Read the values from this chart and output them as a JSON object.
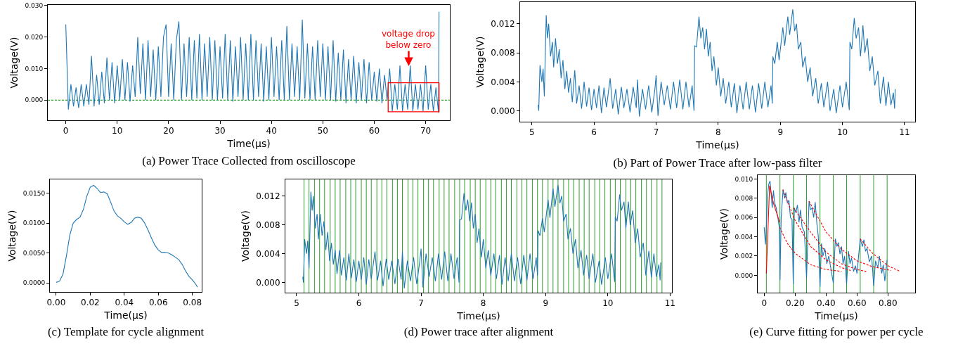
{
  "chart_data": [
    {
      "type": "line",
      "title": "(a) Power Trace Collected from oscilloscope",
      "xlabel": "Time(μs)",
      "ylabel": "Voltage(V)",
      "xlim": [
        -3.5,
        74.7
      ],
      "ylim": [
        -0.0064,
        0.0302
      ],
      "xticks": [
        0,
        10,
        20,
        30,
        40,
        50,
        60,
        70
      ],
      "yticks": [
        {
          "value": 0,
          "label": "0.000"
        },
        {
          "value": 0.01,
          "label": "0.010"
        },
        {
          "value": 0.02,
          "label": "0.020"
        },
        {
          "value": 0.03,
          "label": "0.030"
        }
      ],
      "series": [
        {
          "color": "#1f77b4",
          "x": [
            0,
            0.5,
            1,
            1.5,
            2,
            2.5,
            3,
            3.5,
            4,
            4.5,
            5,
            5.5,
            6,
            6.5,
            7,
            7.5,
            8,
            8.5,
            9,
            9.5,
            10,
            10.5,
            11,
            11.5,
            12,
            12.5,
            13,
            13.5,
            14,
            14.5,
            15,
            15.5,
            16,
            16.5,
            17,
            17.5,
            18,
            18.5,
            19,
            19.5,
            20,
            20.5,
            21,
            21.5,
            22,
            22.5,
            23,
            23.5,
            24,
            24.5,
            25,
            25.5,
            26,
            26.5,
            27,
            27.5,
            28,
            28.5,
            29,
            29.5,
            30,
            30.5,
            31,
            31.5,
            32,
            32.5,
            33,
            33.5,
            34,
            34.5,
            35,
            35.5,
            36,
            36.5,
            37,
            37.5,
            38,
            38.5,
            39,
            39.5,
            40,
            40.5,
            41,
            41.5,
            42,
            42.5,
            43,
            43.5,
            44,
            44.5,
            45,
            45.5,
            46,
            46.5,
            47,
            47.5,
            48,
            48.5,
            49,
            49.5,
            50,
            50.5,
            51,
            51.5,
            52,
            52.5,
            53,
            53.5,
            54,
            54.5,
            55,
            55.5,
            56,
            56.5,
            57,
            57.5,
            58,
            58.5,
            59,
            59.5,
            60,
            60.5,
            61,
            61.5,
            62,
            62.5,
            63,
            63.5,
            64,
            64.5,
            65,
            65.5,
            66,
            66.5,
            67,
            67.5,
            68,
            68.5,
            69,
            69.5,
            70,
            70.5,
            71,
            71.5,
            72,
            72.5,
            72.6
          ],
          "values": [
            0.024,
            -0.003,
            0.005,
            -0.002,
            0.004,
            -0.0025,
            0.005,
            -0.002,
            0.005,
            -0.0015,
            0.014,
            -0.002,
            0.008,
            -0.0015,
            0.009,
            -0.001,
            0.0135,
            0,
            0.012,
            -0.001,
            0.011,
            0,
            0.013,
            0,
            0.012,
            -0.0005,
            0.011,
            0.001,
            0.02,
            0.002,
            0.018,
            0,
            0.019,
            0.001,
            0.016,
            0,
            0.017,
            0.001,
            0.02,
            0.024,
            0.001,
            0.018,
            0,
            0.019,
            0.025,
            0,
            0.018,
            0.001,
            0.02,
            0,
            0.019,
            0.0005,
            0.021,
            0,
            0.018,
            0.001,
            0.02,
            0,
            0.019,
            0,
            0.017,
            0.0005,
            0.021,
            0,
            0.019,
            -0.0005,
            0.017,
            0.001,
            0.02,
            0,
            0.018,
            0,
            0.021,
            0,
            0.019,
            0.001,
            0.018,
            -0.0005,
            0.017,
            0,
            0.02,
            0.001,
            0.017,
            0,
            0.019,
            0,
            0.0235,
            0,
            0.018,
            0.001,
            0.017,
            0,
            0.0255,
            0.0005,
            0.018,
            0,
            0.017,
            0,
            0.019,
            0.001,
            0.018,
            0,
            0.017,
            0,
            0.019,
            -0.0005,
            0.015,
            0,
            0.016,
            -0.001,
            0.013,
            0,
            0.014,
            -0.001,
            0.012,
            0,
            0.013,
            -0.001,
            0.012,
            0,
            0.009,
            -0.0005,
            0.01,
            -0.001,
            0.008,
            0,
            0.01,
            -0.0035,
            0.005,
            -0.003,
            0.011,
            -0.0035,
            0.005,
            -0.003,
            0.011,
            -0.0035,
            0.005,
            -0.003,
            0.005,
            -0.0035,
            0.011,
            -0.003,
            0.005,
            -0.0035,
            0.004,
            -0.004,
            0.028
          ]
        }
      ],
      "ref_lines": [
        {
          "axis": "y",
          "value": 0,
          "color": "#2ca02c",
          "line_style": "dashed"
        }
      ],
      "annotations": [
        {
          "text": "voltage drop\nbelow zero",
          "x": 66.7,
          "y": 0.0108
        }
      ]
    },
    {
      "type": "line",
      "title": "(b) Part of Power Trace after low-pass filter",
      "xlabel": "Time(μs)",
      "ylabel": "Voltage(V)",
      "xlim": [
        4.81,
        11.17
      ],
      "ylim": [
        -0.0015,
        0.015
      ],
      "xticks": [
        5,
        6,
        7,
        8,
        9,
        10,
        11
      ],
      "yticks": [
        {
          "value": 0,
          "label": "0.000"
        },
        {
          "value": 0.004,
          "label": "0.004"
        },
        {
          "value": 0.008,
          "label": "0.008"
        },
        {
          "value": 0.012,
          "label": "0.012"
        }
      ],
      "series": [
        {
          "color": "#1f77b4",
          "x": [
            5.1,
            5.11,
            5.13,
            5.16,
            5.18,
            5.2,
            5.23,
            5.25,
            5.27,
            5.3,
            5.33,
            5.35,
            5.38,
            5.41,
            5.44,
            5.47,
            5.5,
            5.53,
            5.56,
            5.59,
            5.62,
            5.65,
            5.69,
            5.72,
            5.76,
            5.8,
            5.84,
            5.88,
            5.92,
            5.96,
            6,
            6.04,
            6.08,
            6.12,
            6.16,
            6.2,
            6.26,
            6.3,
            6.35,
            6.39,
            6.44,
            6.48,
            6.53,
            6.58,
            6.63,
            6.68,
            6.7,
            6.73,
            6.78,
            6.83,
            6.88,
            6.93,
            6.98,
            7,
            7.03,
            7.08,
            7.13,
            7.18,
            7.23,
            7.28,
            7.33,
            7.38,
            7.43,
            7.48,
            7.53,
            7.58,
            7.61,
            7.62,
            7.65,
            7.69,
            7.72,
            7.75,
            7.78,
            7.81,
            7.84,
            7.87,
            7.9,
            7.93,
            7.97,
            8,
            8.04,
            8.08,
            8.12,
            8.17,
            8.21,
            8.26,
            8.3,
            8.35,
            8.4,
            8.45,
            8.5,
            8.55,
            8.6,
            8.65,
            8.7,
            8.75,
            8.8,
            8.85,
            8.87,
            8.88,
            8.91,
            8.95,
            8.98,
            9.04,
            9.07,
            9.12,
            9.15,
            9.2,
            9.23,
            9.26,
            9.29,
            9.33,
            9.36,
            9.4,
            9.44,
            9.48,
            9.52,
            9.57,
            9.61,
            9.66,
            9.7,
            9.76,
            9.8,
            9.86,
            9.9,
            9.96,
            10,
            10.06,
            10.11,
            10.12,
            10.15,
            10.19,
            10.22,
            10.26,
            10.29,
            10.33,
            10.36,
            10.4,
            10.44,
            10.48,
            10.52,
            10.57,
            10.61,
            10.66,
            10.7,
            10.74,
            10.78,
            10.82,
            10.84,
            10.85
          ],
          "values": [
            0.0008,
            0,
            0.0063,
            0.004,
            0.0058,
            0.002,
            0.0132,
            0.01,
            0.012,
            0.0075,
            0.0095,
            0.006,
            0.01,
            0.0065,
            0.0085,
            0.0045,
            0.007,
            0.003,
            0.0055,
            0.0025,
            0.0045,
            0.0012,
            0.0056,
            0.001,
            0.0035,
            0.0003,
            0.004,
            0.0006,
            0.0032,
            0.0001,
            0.003,
            0.0004,
            0.0035,
            -0.0003,
            0.0032,
            0.0005,
            0.0045,
            0.0003,
            0.003,
            -0.0005,
            0.0033,
            0.0004,
            0.003,
            -0.0002,
            0.0033,
            0.0004,
            0.0043,
            -0.0008,
            0.003,
            0.0002,
            0.0035,
            -0.0002,
            0.003,
            0.0049,
            -0.0007,
            0.004,
            0.0008,
            0.0035,
            0.0002,
            0.004,
            0.0004,
            0.0043,
            0.0002,
            0.004,
            0.0005,
            0.0035,
            0,
            0.009,
            0.0088,
            0.013,
            0.01,
            0.0115,
            0.0085,
            0.0113,
            0.0075,
            0.0095,
            0.0055,
            0.0075,
            0.0035,
            0.006,
            0.002,
            0.0045,
            0.001,
            0.004,
            0.0005,
            0.0038,
            -0.0003,
            0.0035,
            0.0002,
            0.004,
            0.0002,
            0.0035,
            -0.0002,
            0.0038,
            0.0003,
            0.004,
            0.0005,
            0.0035,
            0.001,
            0.0075,
            0.0065,
            0.0095,
            0.007,
            0.0115,
            0.009,
            0.013,
            0.0105,
            0.014,
            0.011,
            0.012,
            0.0085,
            0.0095,
            0.006,
            0.0075,
            0.004,
            0.006,
            0.002,
            0.0045,
            0.001,
            0.0038,
            0.0005,
            0.004,
            0,
            0.003,
            -0.0003,
            0.0035,
            0.0005,
            0.004,
            0.0001,
            0.0095,
            0.0085,
            0.0128,
            0.01,
            0.0115,
            0.0075,
            0.0118,
            0.008,
            0.01,
            0.0055,
            0.0075,
            0.0035,
            0.0055,
            0.001,
            0.0047,
            0.0007,
            0.004,
            0.0008,
            0.0025,
            0.0003,
            0.003
          ]
        }
      ]
    },
    {
      "type": "line",
      "title": "(c) Template for cycle alignment",
      "xlabel": "Time(μs)",
      "ylabel": "Voltage(V)",
      "xlim": [
        -0.0037,
        0.0855
      ],
      "ylim": [
        -0.0015,
        0.0173
      ],
      "xticks": [
        {
          "value": 0,
          "label": "0.00"
        },
        {
          "value": 0.02,
          "label": "0.02"
        },
        {
          "value": 0.04,
          "label": "0.04"
        },
        {
          "value": 0.06,
          "label": "0.06"
        },
        {
          "value": 0.08,
          "label": "0.08"
        }
      ],
      "yticks": [
        {
          "value": 0,
          "label": "0.0000"
        },
        {
          "value": 0.005,
          "label": "0.0050"
        },
        {
          "value": 0.01,
          "label": "0.0100"
        },
        {
          "value": 0.015,
          "label": "0.0150"
        }
      ],
      "series": [
        {
          "color": "#1f77b4",
          "x": [
            0,
            0.002,
            0.004,
            0.006,
            0.008,
            0.01,
            0.012,
            0.014,
            0.016,
            0.018,
            0.02,
            0.022,
            0.024,
            0.026,
            0.028,
            0.03,
            0.032,
            0.034,
            0.036,
            0.038,
            0.04,
            0.042,
            0.044,
            0.046,
            0.048,
            0.05,
            0.052,
            0.054,
            0.056,
            0.058,
            0.06,
            0.062,
            0.064,
            0.066,
            0.068,
            0.07,
            0.072,
            0.074,
            0.076,
            0.078,
            0.08,
            0.082,
            0.083
          ],
          "values": [
            0.0001,
            0.0003,
            0.0015,
            0.0045,
            0.008,
            0.01,
            0.0106,
            0.011,
            0.0123,
            0.0145,
            0.016,
            0.0163,
            0.0158,
            0.0151,
            0.0152,
            0.0149,
            0.0135,
            0.012,
            0.0112,
            0.0108,
            0.0102,
            0.0098,
            0.0101,
            0.0108,
            0.011,
            0.0108,
            0.01,
            0.0088,
            0.0075,
            0.0063,
            0.0055,
            0.0051,
            0.0051,
            0.005,
            0.0047,
            0.0043,
            0.0039,
            0.0031,
            0.002,
            0.0011,
            0.0005,
            -0.0002,
            -0.0007
          ]
        }
      ]
    },
    {
      "type": "line",
      "title": "(d) Power trace after alignment",
      "xlabel": "Time(μs)",
      "ylabel": "Voltage(V)",
      "xlim": [
        4.82,
        11.03
      ],
      "ylim": [
        -0.0014,
        0.0143
      ],
      "xticks": [
        5,
        6,
        7,
        8,
        9,
        10,
        11
      ],
      "yticks": [
        {
          "value": 0,
          "label": "0.000"
        },
        {
          "value": 0.004,
          "label": "0.004"
        },
        {
          "value": 0.008,
          "label": "0.008"
        },
        {
          "value": 0.012,
          "label": "0.012"
        }
      ],
      "series": [
        {
          "color": "#1f77b4",
          "x": [
            5.1,
            5.11,
            5.13,
            5.16,
            5.18,
            5.2,
            5.23,
            5.25,
            5.27,
            5.3,
            5.33,
            5.35,
            5.38,
            5.41,
            5.44,
            5.47,
            5.5,
            5.53,
            5.56,
            5.59,
            5.62,
            5.65,
            5.69,
            5.72,
            5.76,
            5.8,
            5.84,
            5.88,
            5.92,
            5.96,
            6,
            6.04,
            6.08,
            6.12,
            6.16,
            6.2,
            6.26,
            6.3,
            6.35,
            6.39,
            6.44,
            6.48,
            6.53,
            6.58,
            6.63,
            6.68,
            6.7,
            6.73,
            6.78,
            6.83,
            6.88,
            6.93,
            6.98,
            7,
            7.03,
            7.08,
            7.13,
            7.18,
            7.23,
            7.28,
            7.33,
            7.38,
            7.43,
            7.48,
            7.53,
            7.58,
            7.61,
            7.62,
            7.65,
            7.69,
            7.72,
            7.75,
            7.78,
            7.81,
            7.84,
            7.87,
            7.9,
            7.93,
            7.97,
            8,
            8.04,
            8.08,
            8.12,
            8.17,
            8.21,
            8.26,
            8.3,
            8.35,
            8.4,
            8.45,
            8.5,
            8.55,
            8.6,
            8.65,
            8.7,
            8.75,
            8.8,
            8.85,
            8.87,
            8.88,
            8.91,
            8.95,
            8.98,
            9.04,
            9.07,
            9.12,
            9.15,
            9.2,
            9.23,
            9.26,
            9.29,
            9.33,
            9.36,
            9.4,
            9.44,
            9.48,
            9.52,
            9.57,
            9.61,
            9.66,
            9.7,
            9.76,
            9.8,
            9.86,
            9.9,
            9.96,
            10,
            10.06,
            10.11,
            10.12,
            10.15,
            10.19,
            10.22,
            10.26,
            10.29,
            10.33,
            10.36,
            10.4,
            10.44,
            10.48,
            10.52,
            10.57,
            10.61,
            10.66,
            10.7,
            10.74,
            10.78,
            10.82,
            10.84,
            10.85
          ],
          "values": [
            0.0008,
            0,
            0.006,
            0.004,
            0.0058,
            0.002,
            0.0126,
            0.01,
            0.012,
            0.0075,
            0.0095,
            0.006,
            0.0095,
            0.0065,
            0.0085,
            0.0045,
            0.007,
            0.003,
            0.0055,
            0.0025,
            0.0045,
            0.0012,
            0.0045,
            0.001,
            0.0035,
            0.0003,
            0.004,
            0.0006,
            0.0032,
            0.0001,
            0.003,
            0.0004,
            0.0035,
            -0.0003,
            0.0032,
            0.0005,
            0.0043,
            0.0003,
            0.003,
            -0.0005,
            0.0033,
            0.0004,
            0.003,
            -0.0002,
            0.0033,
            0.0004,
            0.0043,
            -0.0008,
            0.003,
            0.0002,
            0.0035,
            -0.0002,
            0.003,
            0.0047,
            -0.0007,
            0.004,
            0.0008,
            0.0035,
            0.0002,
            0.004,
            0.0004,
            0.0043,
            0.0002,
            0.004,
            0.0005,
            0.0035,
            0,
            0.0087,
            0.0088,
            0.0124,
            0.01,
            0.0115,
            0.0085,
            0.0111,
            0.0075,
            0.0095,
            0.0055,
            0.0075,
            0.0035,
            0.006,
            0.002,
            0.0045,
            0.001,
            0.004,
            0.0005,
            0.0038,
            -0.0003,
            0.0035,
            0.0002,
            0.004,
            0.0002,
            0.0035,
            -0.0002,
            0.0038,
            0.0003,
            0.004,
            0.0005,
            0.0035,
            0.001,
            0.0072,
            0.0065,
            0.0089,
            0.007,
            0.0115,
            0.009,
            0.013,
            0.0105,
            0.0135,
            0.011,
            0.012,
            0.0085,
            0.0095,
            0.006,
            0.0075,
            0.004,
            0.006,
            0.002,
            0.0045,
            0.001,
            0.0038,
            0.0005,
            0.004,
            0,
            0.003,
            -0.0003,
            0.0035,
            0.0005,
            0.004,
            0.0001,
            0.0091,
            0.0085,
            0.0122,
            0.01,
            0.0112,
            0.0075,
            0.0112,
            0.008,
            0.01,
            0.0055,
            0.0075,
            0.0035,
            0.0055,
            0.001,
            0.0044,
            0.0007,
            0.004,
            0.0008,
            0.0025,
            0.0003,
            0.0028
          ]
        }
      ],
      "ref_lines": [
        {
          "axis": "x",
          "value": 5.12,
          "color": "#2ca02c"
        },
        {
          "axis": "x",
          "value": 5.2,
          "color": "#2ca02c"
        },
        {
          "axis": "x",
          "value": 5.29,
          "color": "#2ca02c"
        },
        {
          "axis": "x",
          "value": 5.37,
          "color": "#2ca02c"
        },
        {
          "axis": "x",
          "value": 5.45,
          "color": "#2ca02c"
        },
        {
          "axis": "x",
          "value": 5.54,
          "color": "#2ca02c"
        },
        {
          "axis": "x",
          "value": 5.62,
          "color": "#2ca02c"
        },
        {
          "axis": "x",
          "value": 5.7,
          "color": "#2ca02c"
        },
        {
          "axis": "x",
          "value": 5.79,
          "color": "#2ca02c"
        },
        {
          "axis": "x",
          "value": 5.87,
          "color": "#2ca02c"
        },
        {
          "axis": "x",
          "value": 5.95,
          "color": "#2ca02c"
        },
        {
          "axis": "x",
          "value": 6.04,
          "color": "#2ca02c"
        },
        {
          "axis": "x",
          "value": 6.12,
          "color": "#2ca02c"
        },
        {
          "axis": "x",
          "value": 6.2,
          "color": "#2ca02c"
        },
        {
          "axis": "x",
          "value": 6.29,
          "color": "#2ca02c"
        },
        {
          "axis": "x",
          "value": 6.37,
          "color": "#2ca02c"
        },
        {
          "axis": "x",
          "value": 6.45,
          "color": "#2ca02c"
        },
        {
          "axis": "x",
          "value": 6.54,
          "color": "#2ca02c"
        },
        {
          "axis": "x",
          "value": 6.62,
          "color": "#2ca02c"
        },
        {
          "axis": "x",
          "value": 6.7,
          "color": "#2ca02c"
        },
        {
          "axis": "x",
          "value": 6.79,
          "color": "#2ca02c"
        },
        {
          "axis": "x",
          "value": 6.87,
          "color": "#2ca02c"
        },
        {
          "axis": "x",
          "value": 6.95,
          "color": "#2ca02c"
        },
        {
          "axis": "x",
          "value": 7.04,
          "color": "#2ca02c"
        },
        {
          "axis": "x",
          "value": 7.12,
          "color": "#2ca02c"
        },
        {
          "axis": "x",
          "value": 7.2,
          "color": "#2ca02c"
        },
        {
          "axis": "x",
          "value": 7.29,
          "color": "#2ca02c"
        },
        {
          "axis": "x",
          "value": 7.37,
          "color": "#2ca02c"
        },
        {
          "axis": "x",
          "value": 7.45,
          "color": "#2ca02c"
        },
        {
          "axis": "x",
          "value": 7.54,
          "color": "#2ca02c"
        },
        {
          "axis": "x",
          "value": 7.62,
          "color": "#2ca02c"
        },
        {
          "axis": "x",
          "value": 7.7,
          "color": "#2ca02c"
        },
        {
          "axis": "x",
          "value": 7.79,
          "color": "#2ca02c"
        },
        {
          "axis": "x",
          "value": 7.87,
          "color": "#2ca02c"
        },
        {
          "axis": "x",
          "value": 7.95,
          "color": "#2ca02c"
        },
        {
          "axis": "x",
          "value": 8.04,
          "color": "#2ca02c"
        },
        {
          "axis": "x",
          "value": 8.12,
          "color": "#2ca02c"
        },
        {
          "axis": "x",
          "value": 8.2,
          "color": "#2ca02c"
        },
        {
          "axis": "x",
          "value": 8.29,
          "color": "#2ca02c"
        },
        {
          "axis": "x",
          "value": 8.37,
          "color": "#2ca02c"
        },
        {
          "axis": "x",
          "value": 8.45,
          "color": "#2ca02c"
        },
        {
          "axis": "x",
          "value": 8.54,
          "color": "#2ca02c"
        },
        {
          "axis": "x",
          "value": 8.62,
          "color": "#2ca02c"
        },
        {
          "axis": "x",
          "value": 8.7,
          "color": "#2ca02c"
        },
        {
          "axis": "x",
          "value": 8.79,
          "color": "#2ca02c"
        },
        {
          "axis": "x",
          "value": 8.87,
          "color": "#2ca02c"
        },
        {
          "axis": "x",
          "value": 8.95,
          "color": "#2ca02c"
        },
        {
          "axis": "x",
          "value": 9.04,
          "color": "#2ca02c"
        },
        {
          "axis": "x",
          "value": 9.12,
          "color": "#2ca02c"
        },
        {
          "axis": "x",
          "value": 9.2,
          "color": "#2ca02c"
        },
        {
          "axis": "x",
          "value": 9.29,
          "color": "#2ca02c"
        },
        {
          "axis": "x",
          "value": 9.37,
          "color": "#2ca02c"
        },
        {
          "axis": "x",
          "value": 9.45,
          "color": "#2ca02c"
        },
        {
          "axis": "x",
          "value": 9.54,
          "color": "#2ca02c"
        },
        {
          "axis": "x",
          "value": 9.62,
          "color": "#2ca02c"
        },
        {
          "axis": "x",
          "value": 9.7,
          "color": "#2ca02c"
        },
        {
          "axis": "x",
          "value": 9.79,
          "color": "#2ca02c"
        },
        {
          "axis": "x",
          "value": 9.87,
          "color": "#2ca02c"
        },
        {
          "axis": "x",
          "value": 9.95,
          "color": "#2ca02c"
        },
        {
          "axis": "x",
          "value": 10.04,
          "color": "#2ca02c"
        },
        {
          "axis": "x",
          "value": 10.12,
          "color": "#2ca02c"
        },
        {
          "axis": "x",
          "value": 10.2,
          "color": "#2ca02c"
        },
        {
          "axis": "x",
          "value": 10.29,
          "color": "#2ca02c"
        },
        {
          "axis": "x",
          "value": 10.37,
          "color": "#2ca02c"
        },
        {
          "axis": "x",
          "value": 10.45,
          "color": "#2ca02c"
        },
        {
          "axis": "x",
          "value": 10.54,
          "color": "#2ca02c"
        },
        {
          "axis": "x",
          "value": 10.62,
          "color": "#2ca02c"
        },
        {
          "axis": "x",
          "value": 10.7,
          "color": "#2ca02c"
        },
        {
          "axis": "x",
          "value": 10.79,
          "color": "#2ca02c"
        },
        {
          "axis": "x",
          "value": 10.87,
          "color": "#2ca02c"
        }
      ]
    },
    {
      "type": "line",
      "title": "(e) Curve fitting for power per cycle",
      "xlabel": "Time(μs)",
      "ylabel": "Voltage(V)",
      "xlim": [
        -0.042,
        0.976
      ],
      "ylim": [
        -0.0018,
        0.0104
      ],
      "xticks": [
        {
          "value": 0,
          "label": "0"
        },
        {
          "value": 0.2,
          "label": "0.20"
        },
        {
          "value": 0.4,
          "label": "0.40"
        },
        {
          "value": 0.6,
          "label": "0.60"
        },
        {
          "value": 0.8,
          "label": "0.80"
        }
      ],
      "yticks": [
        {
          "value": 0,
          "label": "0.000"
        },
        {
          "value": 0.002,
          "label": "0.002"
        },
        {
          "value": 0.004,
          "label": "0.004"
        },
        {
          "value": 0.006,
          "label": "0.006"
        },
        {
          "value": 0.008,
          "label": "0.008"
        },
        {
          "value": 0.01,
          "label": "0.010"
        }
      ],
      "series": [
        {
          "color": "#1f77b4",
          "x": [
            0,
            0.008,
            0.014,
            0.02,
            0.03,
            0.038,
            0.045,
            0.052,
            0.06,
            0.068,
            0.078,
            0.088,
            0.098,
            0.102,
            0.11,
            0.122,
            0.132,
            0.14,
            0.15,
            0.16,
            0.17,
            0.18,
            0.188,
            0.195,
            0.205,
            0.215,
            0.225,
            0.235,
            0.245,
            0.26,
            0.274,
            0.29,
            0.3,
            0.31,
            0.32,
            0.33,
            0.34,
            0.35,
            0.361,
            0.37,
            0.38,
            0.392,
            0.405,
            0.418,
            0.43,
            0.447,
            0.46,
            0.47,
            0.48,
            0.49,
            0.5,
            0.51,
            0.52,
            0.533,
            0.545,
            0.555,
            0.565,
            0.578,
            0.59,
            0.6,
            0.621,
            0.635,
            0.645,
            0.655,
            0.665,
            0.68,
            0.695,
            0.708,
            0.72,
            0.735,
            0.745,
            0.76,
            0.77,
            0.78,
            0.795
          ],
          "values": [
            0.005,
            0.0032,
            0.005,
            0.008,
            0.0095,
            0.0098,
            0.0085,
            0.007,
            0.0088,
            0.0075,
            0.007,
            0.006,
            0.005,
            -0.0005,
            0.006,
            0.0089,
            0.008,
            0.0086,
            0.0075,
            0.0078,
            0.006,
            0.0058,
            -0.0009,
            0.007,
            0.0065,
            0.0073,
            0.0055,
            0.0068,
            0.005,
            0.0045,
            -0.0003,
            0.0077,
            0.0068,
            0.007,
            0.006,
            0.0076,
            0.0055,
            0.004,
            -0.0012,
            0.0033,
            0.002,
            0.0028,
            0.0012,
            0.002,
            0.0008,
            -0.0008,
            0.0038,
            0.003,
            0.0034,
            0.0022,
            0.003,
            0.0012,
            0.002,
            -0.0009,
            0.0025,
            0.0012,
            0.0018,
            0.0004,
            0.001,
            0.0002,
            0.0038,
            0.003,
            0.0037,
            0.0025,
            0.0028,
            0.0014,
            0.002,
            -0.0011,
            0.0015,
            0.0008,
            0.002,
            0.0002,
            0.0011,
            -0.0006,
            0.0016
          ]
        },
        {
          "color": "#ff0000",
          "line_style": "solid",
          "x": [
            0.014,
            0.035,
            0.06,
            0.1
          ],
          "values": [
            0.0002,
            0.0093,
            0.0075,
            0.0055
          ]
        },
        {
          "color": "#ff0000",
          "line_style": "dashed",
          "x": [
            0.1,
            0.15,
            0.2,
            0.3,
            0.4,
            0.5
          ],
          "values": [
            0.005,
            0.0033,
            0.0023,
            0.0011,
            0.0006,
            0.0004
          ]
        },
        {
          "color": "#ff0000",
          "line_style": "dashed",
          "x": [
            0.12,
            0.2,
            0.3,
            0.4,
            0.5,
            0.56
          ],
          "values": [
            0.0089,
            0.0057,
            0.003,
            0.0016,
            0.0008,
            0.0005
          ]
        },
        {
          "color": "#ff0000",
          "line_style": "dashed",
          "x": [
            0.19,
            0.3,
            0.4,
            0.5,
            0.6,
            0.66
          ],
          "values": [
            0.007,
            0.0045,
            0.0024,
            0.0012,
            0.0006,
            0.0004
          ]
        },
        {
          "color": "#ff0000",
          "line_style": "dashed",
          "x": [
            0.29,
            0.4,
            0.5,
            0.6,
            0.7,
            0.82
          ],
          "values": [
            0.0077,
            0.0045,
            0.0027,
            0.0015,
            0.0009,
            0.0005
          ]
        },
        {
          "color": "#ff0000",
          "line_style": "dashed",
          "x": [
            0.62,
            0.7,
            0.8,
            0.88
          ],
          "values": [
            0.0038,
            0.0023,
            0.001,
            0.0004
          ]
        }
      ],
      "ref_lines": [
        {
          "axis": "x",
          "value": 0.014,
          "color": "#2ca02c"
        },
        {
          "axis": "x",
          "value": 0.102,
          "color": "#2ca02c"
        },
        {
          "axis": "x",
          "value": 0.188,
          "color": "#2ca02c"
        },
        {
          "axis": "x",
          "value": 0.274,
          "color": "#2ca02c"
        },
        {
          "axis": "x",
          "value": 0.361,
          "color": "#2ca02c"
        },
        {
          "axis": "x",
          "value": 0.447,
          "color": "#2ca02c"
        },
        {
          "axis": "x",
          "value": 0.533,
          "color": "#2ca02c"
        },
        {
          "axis": "x",
          "value": 0.621,
          "color": "#2ca02c"
        },
        {
          "axis": "x",
          "value": 0.708,
          "color": "#2ca02c"
        },
        {
          "axis": "x",
          "value": 0.795,
          "color": "#2ca02c"
        }
      ]
    }
  ]
}
